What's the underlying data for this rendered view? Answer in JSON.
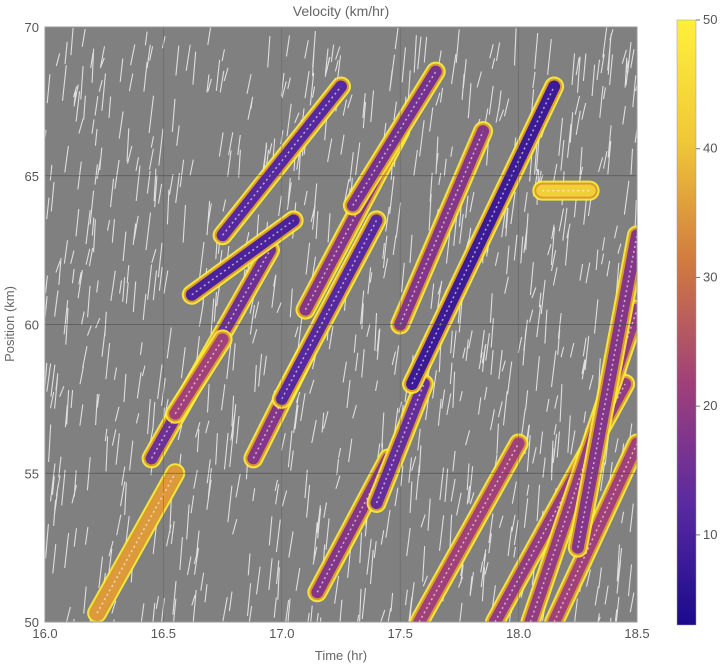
{
  "chart_data": {
    "type": "heatmap",
    "title": "Velocity (km/hr)",
    "xlabel": "Time (hr)",
    "ylabel": "Position (km)",
    "xlim": [
      16.0,
      18.5
    ],
    "ylim": [
      50,
      70
    ],
    "x_ticks": [
      16.0,
      16.5,
      17.0,
      17.5,
      18.0,
      18.5
    ],
    "x_tick_labels": [
      "16.0",
      "16.5",
      "17.0",
      "17.5",
      "18.0",
      "18.5"
    ],
    "y_ticks": [
      50,
      55,
      60,
      65,
      70
    ],
    "y_tick_labels": [
      "50",
      "55",
      "60",
      "65",
      "70"
    ],
    "grid": true,
    "background_color": "#808080",
    "trajectory_color": "#ffffff",
    "colorbar": {
      "min": 3,
      "max": 50,
      "ticks": [
        10,
        20,
        30,
        40,
        50
      ],
      "tick_labels": [
        "10",
        "20",
        "30",
        "40",
        "50"
      ],
      "colors": [
        "#1a0a8c",
        "#5a2aa0",
        "#a0407a",
        "#d07a40",
        "#f0c838",
        "#fff03a"
      ]
    },
    "congestion_bands": [
      {
        "t0": 16.22,
        "x0": 50.3,
        "t1": 16.55,
        "x1": 55.0,
        "speed": 35
      },
      {
        "t0": 16.45,
        "x0": 55.5,
        "t1": 16.95,
        "x1": 62.5,
        "speed": 15
      },
      {
        "t0": 16.55,
        "x0": 57.0,
        "t1": 16.75,
        "x1": 59.5,
        "speed": 22
      },
      {
        "t0": 16.62,
        "x0": 61.0,
        "t1": 17.05,
        "x1": 63.5,
        "speed": 10
      },
      {
        "t0": 16.75,
        "x0": 63.0,
        "t1": 17.25,
        "x1": 68.0,
        "speed": 12
      },
      {
        "t0": 16.88,
        "x0": 55.5,
        "t1": 17.1,
        "x1": 59.0,
        "speed": 18
      },
      {
        "t0": 17.0,
        "x0": 57.5,
        "t1": 17.4,
        "x1": 63.5,
        "speed": 12
      },
      {
        "t0": 17.1,
        "x0": 60.5,
        "t1": 17.5,
        "x1": 66.5,
        "speed": 18
      },
      {
        "t0": 17.3,
        "x0": 64.0,
        "t1": 17.65,
        "x1": 68.5,
        "speed": 16
      },
      {
        "t0": 17.15,
        "x0": 51.0,
        "t1": 17.45,
        "x1": 55.5,
        "speed": 18
      },
      {
        "t0": 17.4,
        "x0": 54.0,
        "t1": 17.6,
        "x1": 58.0,
        "speed": 14
      },
      {
        "t0": 17.55,
        "x0": 58.0,
        "t1": 18.15,
        "x1": 68.0,
        "speed": 8
      },
      {
        "t0": 17.5,
        "x0": 60.0,
        "t1": 17.85,
        "x1": 66.5,
        "speed": 18
      },
      {
        "t0": 17.58,
        "x0": 50.0,
        "t1": 18.0,
        "x1": 56.0,
        "speed": 22
      },
      {
        "t0": 17.9,
        "x0": 50.0,
        "t1": 18.45,
        "x1": 58.0,
        "speed": 20
      },
      {
        "t0": 18.05,
        "x0": 50.0,
        "t1": 18.5,
        "x1": 60.5,
        "speed": 20
      },
      {
        "t0": 18.15,
        "x0": 50.0,
        "t1": 18.5,
        "x1": 56.0,
        "speed": 22
      },
      {
        "t0": 18.25,
        "x0": 52.5,
        "t1": 18.5,
        "x1": 63.0,
        "speed": 18
      },
      {
        "t0": 18.1,
        "x0": 64.5,
        "t1": 18.3,
        "x1": 64.5,
        "speed": 42
      }
    ]
  }
}
